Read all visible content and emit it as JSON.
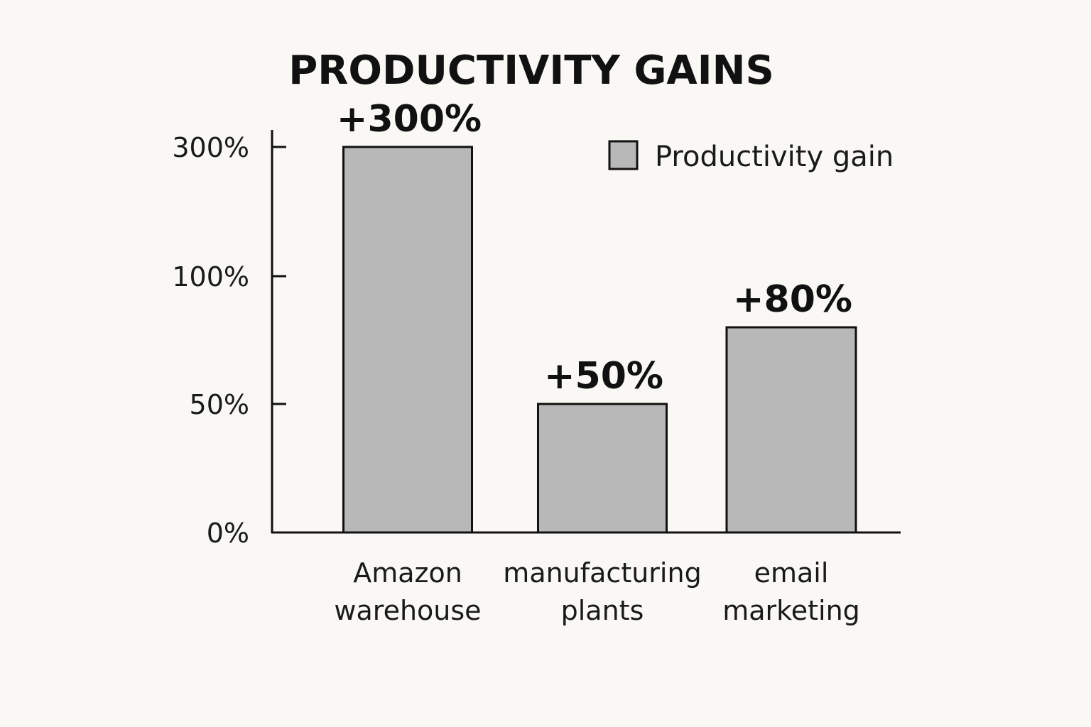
{
  "chart_data": {
    "type": "bar",
    "title": "PRODUCTIVITY GAINS",
    "categories": [
      [
        "Amazon",
        "warehouse"
      ],
      [
        "manufacturing",
        "plants"
      ],
      [
        "email",
        "marketing"
      ]
    ],
    "series": [
      {
        "name": "Productivity gain",
        "values": [
          300,
          50,
          80
        ],
        "labels": [
          "+300%",
          "+50%",
          "+80%"
        ]
      }
    ],
    "y_ticks": [
      0,
      50,
      100,
      300
    ],
    "y_tick_labels": [
      "0%",
      "50%",
      "100%",
      "300%"
    ],
    "y_scale": "nonlinear (ticks 0%, 50%, 100%, 300% unevenly spaced)",
    "grid": false,
    "legend_position": "top-right",
    "colors": {
      "bar_fill": "#b8b8b8",
      "bar_stroke": "#111111",
      "axis": "#111111",
      "background": "#f9f8f4"
    }
  }
}
